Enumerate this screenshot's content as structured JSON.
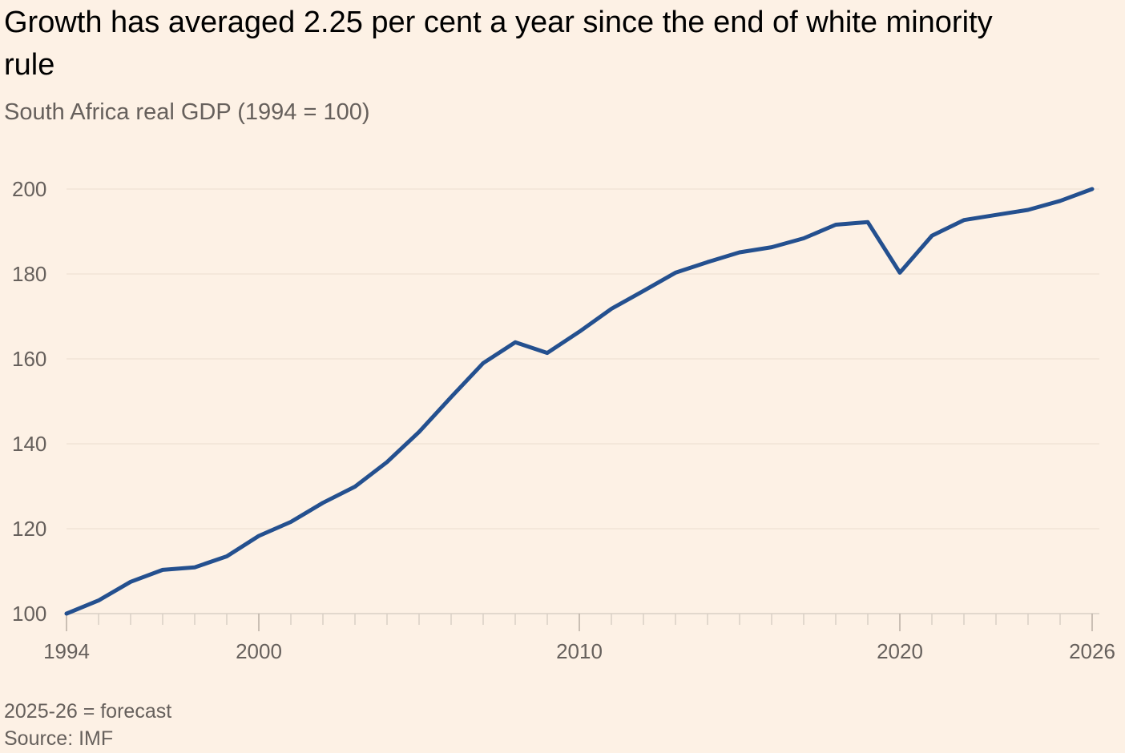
{
  "header": {
    "title": "Growth has averaged 2.25 per cent a year since the end of white minority rule",
    "subtitle": "South Africa real GDP (1994 = 100)"
  },
  "footer": {
    "note": "2025-26 = forecast",
    "source": "Source: IMF"
  },
  "colors": {
    "background": "#fdf1e5",
    "line": "#24508f",
    "grid": "#f1e4d6",
    "axis": "#d9cfc5",
    "text_muted": "#66605c"
  },
  "chart_data": {
    "type": "line",
    "title": "Growth has averaged 2.25 per cent a year since the end of white minority rule",
    "subtitle": "South Africa real GDP (1994 = 100)",
    "xlabel": "",
    "ylabel": "",
    "xlim": [
      1994,
      2026
    ],
    "ylim": [
      100,
      200
    ],
    "grid": true,
    "y_ticks": [
      100,
      120,
      140,
      160,
      180,
      200
    ],
    "x_tick_labels": [
      1994,
      2000,
      2010,
      2020,
      2026
    ],
    "series": [
      {
        "x": [
          1994,
          1995,
          1996,
          1997,
          1998,
          1999,
          2000,
          2001,
          2002,
          2003,
          2004,
          2005,
          2006,
          2007,
          2008,
          2009,
          2010,
          2011,
          2012,
          2013,
          2014,
          2015,
          2016,
          2017,
          2018,
          2019,
          2020,
          2021,
          2022,
          2023,
          2024,
          2025,
          2026
        ],
        "values": [
          100,
          103.1,
          107.5,
          110.3,
          110.9,
          113.5,
          118.3,
          121.6,
          126.1,
          129.9,
          135.7,
          142.8,
          151,
          159,
          163.9,
          161.4,
          166.4,
          171.8,
          176,
          180.3,
          182.8,
          185.1,
          186.3,
          188.4,
          191.6,
          192.2,
          180.3,
          189,
          192.7,
          193.9,
          195.1,
          197.2,
          200
        ]
      }
    ]
  }
}
